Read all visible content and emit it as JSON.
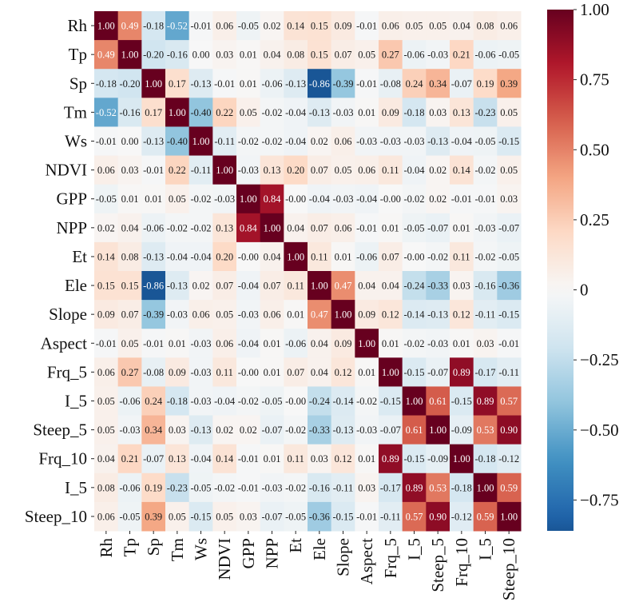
{
  "chart_data": {
    "type": "heatmap",
    "title": "",
    "xlabel": "",
    "ylabel": "",
    "row_labels": [
      "Rh",
      "Tp",
      "Sp",
      "Tm",
      "Ws",
      "NDVI",
      "GPP",
      "NPP",
      "Et",
      "Ele",
      "Slope",
      "Aspect",
      "Frq_5",
      "I_5",
      "Steep_5",
      "Frq_10",
      "I_5",
      "Steep_10"
    ],
    "col_labels": [
      "Rh",
      "Tp",
      "Sp",
      "Tm",
      "Ws",
      "NDVI",
      "GPP",
      "NPP",
      "Et",
      "Ele",
      "Slope",
      "Aspect",
      "Frq_5",
      "I_5",
      "Steep_5",
      "Frq_10",
      "I_5",
      "Steep_10"
    ],
    "values": [
      [
        1.0,
        0.49,
        -0.18,
        -0.52,
        -0.01,
        0.06,
        -0.05,
        0.02,
        0.14,
        0.15,
        0.09,
        -0.01,
        0.06,
        0.05,
        0.05,
        0.04,
        0.08,
        0.06
      ],
      [
        0.49,
        1.0,
        -0.2,
        -0.16,
        0.0,
        0.03,
        0.01,
        0.04,
        0.08,
        0.15,
        0.07,
        0.05,
        0.27,
        -0.06,
        -0.03,
        0.21,
        -0.06,
        -0.05
      ],
      [
        -0.18,
        -0.2,
        1.0,
        0.17,
        -0.13,
        -0.01,
        0.01,
        -0.06,
        -0.13,
        -0.86,
        -0.39,
        -0.01,
        -0.08,
        0.24,
        0.34,
        -0.07,
        0.19,
        0.39
      ],
      [
        -0.52,
        -0.16,
        0.17,
        1.0,
        -0.4,
        0.22,
        0.05,
        -0.02,
        -0.04,
        -0.13,
        -0.03,
        0.01,
        0.09,
        -0.18,
        0.03,
        0.13,
        -0.23,
        0.05
      ],
      [
        -0.01,
        0.0,
        -0.13,
        -0.4,
        1.0,
        -0.11,
        -0.02,
        -0.02,
        -0.04,
        0.02,
        0.06,
        -0.03,
        -0.03,
        -0.03,
        -0.13,
        -0.04,
        -0.05,
        -0.15
      ],
      [
        0.06,
        0.03,
        -0.01,
        0.22,
        -0.11,
        1.0,
        -0.03,
        0.13,
        0.2,
        0.07,
        0.05,
        0.06,
        0.11,
        -0.04,
        0.02,
        0.14,
        -0.02,
        0.05
      ],
      [
        -0.05,
        0.01,
        0.01,
        0.05,
        -0.02,
        -0.03,
        1.0,
        0.84,
        -0.0,
        -0.04,
        -0.03,
        -0.04,
        -0.0,
        -0.02,
        0.02,
        -0.01,
        -0.01,
        0.03
      ],
      [
        0.02,
        0.04,
        -0.06,
        -0.02,
        -0.02,
        0.13,
        0.84,
        1.0,
        0.04,
        0.07,
        0.06,
        -0.01,
        0.01,
        -0.05,
        -0.07,
        0.01,
        -0.03,
        -0.07
      ],
      [
        0.14,
        0.08,
        -0.13,
        -0.04,
        -0.04,
        0.2,
        -0.0,
        0.04,
        1.0,
        0.11,
        0.01,
        -0.06,
        0.07,
        -0.0,
        -0.02,
        0.11,
        -0.02,
        -0.05
      ],
      [
        0.15,
        0.15,
        -0.86,
        -0.13,
        0.02,
        0.07,
        -0.04,
        0.07,
        0.11,
        1.0,
        0.47,
        0.04,
        0.04,
        -0.24,
        -0.33,
        0.03,
        -0.16,
        -0.36
      ],
      [
        0.09,
        0.07,
        -0.39,
        -0.03,
        0.06,
        0.05,
        -0.03,
        0.06,
        0.01,
        0.47,
        1.0,
        0.09,
        0.12,
        -0.14,
        -0.13,
        0.12,
        -0.11,
        -0.15
      ],
      [
        -0.01,
        0.05,
        -0.01,
        0.01,
        -0.03,
        0.06,
        -0.04,
        0.01,
        -0.06,
        0.04,
        0.09,
        1.0,
        0.01,
        -0.02,
        -0.03,
        0.01,
        0.03,
        -0.01
      ],
      [
        0.06,
        0.27,
        -0.08,
        0.09,
        -0.03,
        0.11,
        -0.0,
        0.01,
        0.07,
        0.04,
        0.12,
        0.01,
        1.0,
        -0.15,
        -0.07,
        0.89,
        -0.17,
        -0.11
      ],
      [
        0.05,
        -0.06,
        0.24,
        -0.18,
        -0.03,
        -0.04,
        -0.02,
        -0.05,
        -0.0,
        -0.24,
        -0.14,
        -0.02,
        -0.15,
        1.0,
        0.61,
        -0.15,
        0.89,
        0.57
      ],
      [
        0.05,
        -0.03,
        0.34,
        0.03,
        -0.13,
        0.02,
        0.02,
        -0.07,
        -0.02,
        -0.33,
        -0.13,
        -0.03,
        -0.07,
        0.61,
        1.0,
        -0.09,
        0.53,
        0.9
      ],
      [
        0.04,
        0.21,
        -0.07,
        0.13,
        -0.04,
        0.14,
        -0.01,
        0.01,
        0.11,
        0.03,
        0.12,
        0.01,
        0.89,
        -0.15,
        -0.09,
        1.0,
        -0.18,
        -0.12
      ],
      [
        0.08,
        -0.06,
        0.19,
        -0.23,
        -0.05,
        -0.02,
        -0.01,
        -0.03,
        -0.02,
        -0.16,
        -0.11,
        0.03,
        -0.17,
        0.89,
        0.53,
        -0.18,
        1.0,
        0.59
      ],
      [
        0.06,
        -0.05,
        0.39,
        0.05,
        -0.15,
        0.05,
        0.03,
        -0.07,
        -0.05,
        -0.36,
        -0.15,
        -0.01,
        -0.11,
        0.57,
        0.9,
        -0.12,
        0.59,
        1.0
      ]
    ],
    "value_format": "0.00",
    "colormap": "RdBu_r",
    "color_range": [
      -0.86,
      1.0
    ],
    "colorbar": {
      "ticks": [
        1.0,
        0.75,
        0.5,
        0.25,
        0,
        -0.25,
        -0.5,
        -0.75
      ],
      "tick_labels": [
        "1.00",
        "0.75",
        "0.50",
        "0.25",
        "0",
        "−0.25",
        "−0.50",
        "−0.75"
      ],
      "placement": "right"
    },
    "grid": false,
    "legend": "colorbar-right"
  }
}
